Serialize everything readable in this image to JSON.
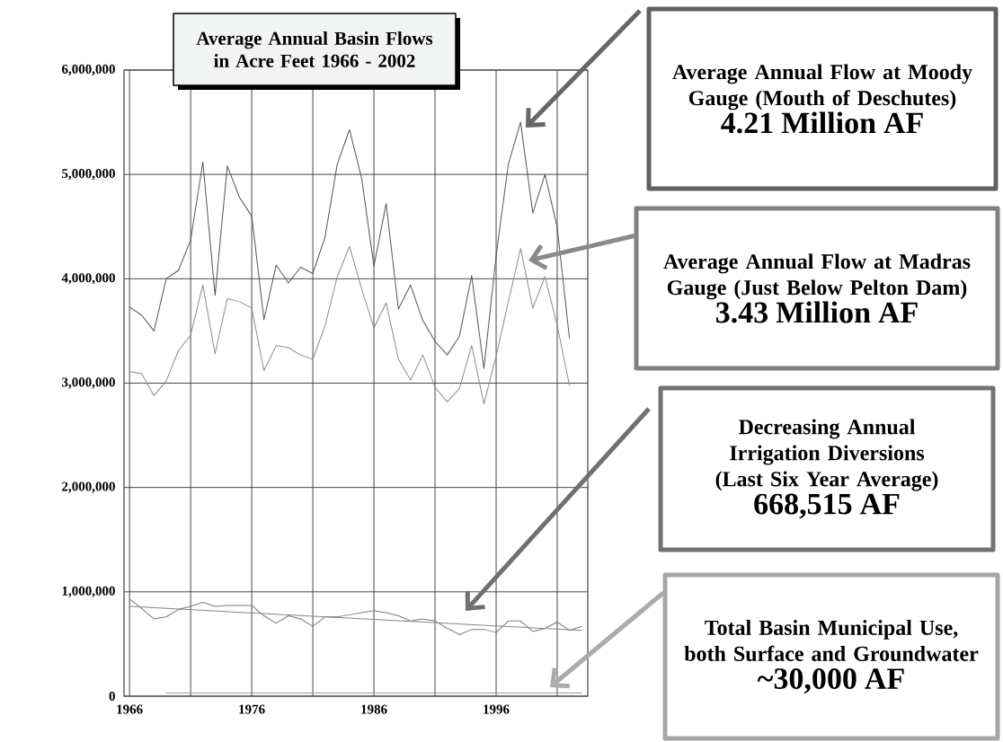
{
  "chart_data": {
    "type": "line",
    "title": "Average Annual Basin Flows in Acre Feet 1966 - 2002",
    "x": [
      1966,
      1967,
      1968,
      1969,
      1970,
      1971,
      1972,
      1973,
      1974,
      1975,
      1976,
      1977,
      1978,
      1979,
      1980,
      1981,
      1982,
      1983,
      1984,
      1985,
      1986,
      1987,
      1988,
      1989,
      1990,
      1991,
      1992,
      1993,
      1994,
      1995,
      1996,
      1997,
      1998,
      1999,
      2000,
      2001,
      2002
    ],
    "series": [
      {
        "color": "#555555",
        "values": [
          3730000,
          3650000,
          3500000,
          4000000,
          4080000,
          4370000,
          5120000,
          3840000,
          5080000,
          4780000,
          4600000,
          3610000,
          4130000,
          3960000,
          4110000,
          4050000,
          4400000,
          5100000,
          5430000,
          4960000,
          4120000,
          4720000,
          3710000,
          3940000,
          3600000,
          3400000,
          3270000,
          3450000,
          4030000,
          3140000,
          4220000,
          5100000,
          5500000,
          4630000,
          5000000,
          4490000,
          3430000
        ]
      },
      {
        "color": "#8c8c8c",
        "values": [
          3110000,
          3090000,
          2880000,
          3020000,
          3310000,
          3460000,
          3940000,
          3280000,
          3810000,
          3780000,
          3720000,
          3120000,
          3360000,
          3340000,
          3270000,
          3230000,
          3550000,
          4020000,
          4310000,
          3900000,
          3530000,
          3770000,
          3230000,
          3030000,
          3270000,
          2960000,
          2820000,
          2950000,
          3360000,
          2800000,
          3260000,
          3780000,
          4290000,
          3720000,
          4020000,
          3550000,
          2980000
        ]
      },
      {
        "color": "#7a7a7a",
        "x": [
          1966,
          1967,
          1968,
          1969,
          1970,
          1971,
          1972,
          1973,
          1974,
          1975,
          1976,
          1977,
          1978,
          1979,
          1980,
          1981,
          1982,
          1983,
          1984,
          1985,
          1986,
          1987,
          1988,
          1989,
          1990,
          1991,
          1992,
          1993,
          1994,
          1995,
          1996,
          1997,
          1998,
          1999,
          2000,
          2001,
          2002,
          2003
        ],
        "values": [
          930000,
          840000,
          740000,
          760000,
          830000,
          860000,
          900000,
          860000,
          870000,
          870000,
          870000,
          770000,
          700000,
          770000,
          740000,
          670000,
          760000,
          760000,
          780000,
          800000,
          820000,
          800000,
          770000,
          720000,
          740000,
          720000,
          650000,
          590000,
          640000,
          640000,
          610000,
          720000,
          720000,
          620000,
          650000,
          710000,
          630000,
          670000
        ]
      },
      {
        "color": "#858585",
        "x": [
          1966,
          2003
        ],
        "values": [
          860000,
          630000
        ]
      },
      {
        "color": "#9a9a9a",
        "x": [
          1969,
          2003
        ],
        "values": [
          30000,
          30000
        ]
      }
    ],
    "xlim": [
      1965.55,
      2003.5
    ],
    "xticks": [
      1966,
      {
        "value": 1971,
        "label": null
      },
      1976,
      {
        "value": 1981,
        "label": null
      },
      1986,
      {
        "value": 1991,
        "label": null
      },
      1996,
      {
        "value": 2001,
        "label": null
      }
    ],
    "ylim": [
      0,
      6000000
    ],
    "yticks": [
      0,
      {
        "value": 1000000,
        "label": "1,000,000"
      },
      {
        "value": 2000000,
        "label": "2,000,000"
      },
      {
        "value": 3000000,
        "label": "3,000,000"
      },
      {
        "value": 4000000,
        "label": "4,000,000"
      },
      {
        "value": 5000000,
        "label": "5,000,000"
      },
      {
        "value": 6000000,
        "label": "6,000,000"
      }
    ],
    "grid": true,
    "annotations": [
      "Average Annual Flow at Moody Gauge (Mouth of Deschutes)",
      "4.21 Million AF",
      "Average Annual Flow at Madras Gauge (Just Below Pelton Dam)",
      "3.43 Million AF",
      "Decreasing Annual Irrigation Diversions (Last Six Year Average)",
      "668,515 AF",
      "Total Basin Municipal Use, both Surface and Groundwater",
      "~30,000 AF"
    ]
  }
}
